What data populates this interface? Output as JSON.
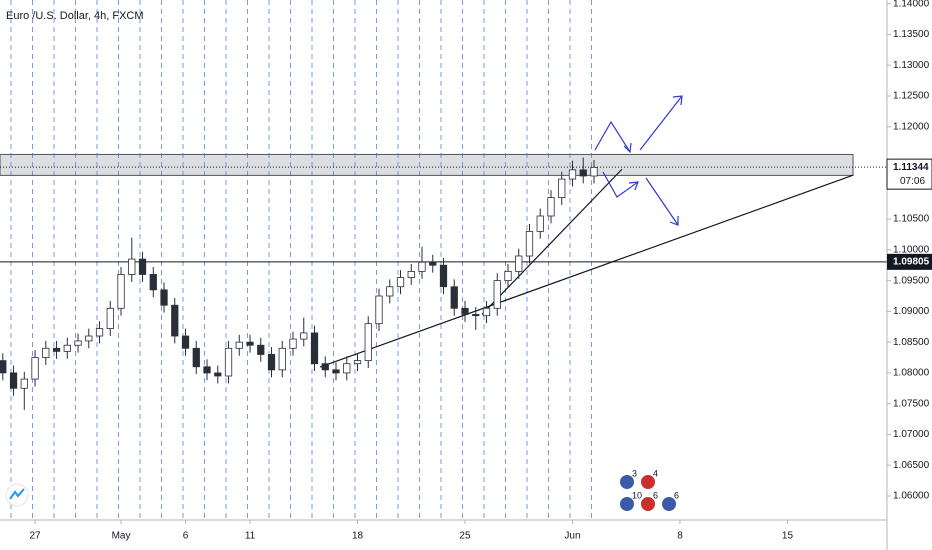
{
  "chart_data": {
    "type": "candlestick",
    "title": "Euro /U.S. Dollar, 4h, FXCM",
    "x": [
      -1.5,
      -1,
      -0.5,
      0,
      0.5,
      1,
      1.5,
      2,
      2.5,
      3,
      3.5,
      4,
      4.5,
      5,
      5.5,
      6,
      6.5,
      7,
      7.5,
      8,
      8.5,
      9,
      9.5,
      10,
      10.5,
      11,
      11.5,
      12,
      12.5,
      13,
      13.5,
      14,
      14.5,
      15,
      15.5,
      16,
      16.5,
      17,
      17.5,
      18,
      18.5,
      19,
      19.5,
      20,
      20.5,
      21,
      21.5,
      22,
      22.5,
      23,
      23.5,
      24,
      24.5,
      25,
      25.5,
      26
    ],
    "open": [
      1.082,
      1.08,
      1.0775,
      1.079,
      1.0825,
      1.084,
      1.0835,
      1.0845,
      1.0852,
      1.086,
      1.0872,
      1.0905,
      1.096,
      1.0985,
      1.096,
      1.0935,
      1.091,
      1.086,
      1.084,
      1.081,
      1.08,
      1.0795,
      1.084,
      1.085,
      1.0845,
      1.083,
      1.0805,
      1.084,
      1.0855,
      1.0865,
      1.0815,
      1.0805,
      1.08,
      1.0815,
      1.082,
      1.088,
      1.0925,
      1.094,
      1.0955,
      1.0965,
      1.098,
      1.0975,
      1.094,
      1.0905,
      1.0895,
      1.0893,
      1.0905,
      1.095,
      1.0965,
      1.099,
      1.103,
      1.1055,
      1.1085,
      1.1115,
      1.113,
      1.112
    ],
    "high": [
      1.0832,
      1.0812,
      1.0802,
      1.0837,
      1.0852,
      1.0852,
      1.0857,
      1.0864,
      1.0872,
      1.0884,
      1.0917,
      1.0972,
      1.102,
      1.0997,
      1.0972,
      1.0947,
      1.0922,
      1.0872,
      1.0852,
      1.0822,
      1.0812,
      1.0852,
      1.0862,
      1.0862,
      1.0857,
      1.0842,
      1.0852,
      1.0867,
      1.089,
      1.0877,
      1.0827,
      1.0817,
      1.0827,
      1.0832,
      1.0892,
      1.0937,
      1.0952,
      1.0967,
      1.0977,
      1.1005,
      1.0992,
      1.0987,
      1.0952,
      1.0917,
      1.0907,
      1.0917,
      1.0962,
      1.0977,
      1.1002,
      1.1042,
      1.1067,
      1.1097,
      1.1127,
      1.1145,
      1.115,
      1.1146
    ],
    "low": [
      1.0788,
      1.0763,
      1.074,
      1.0778,
      1.0813,
      1.0823,
      1.0823,
      1.0833,
      1.084,
      1.0848,
      1.086,
      1.0893,
      1.0948,
      1.0948,
      1.0923,
      1.0898,
      1.0848,
      1.0828,
      1.0798,
      1.0788,
      1.0783,
      1.0783,
      1.0828,
      1.0833,
      1.0818,
      1.0793,
      1.0793,
      1.0828,
      1.0843,
      1.0803,
      1.0793,
      1.0788,
      1.0788,
      1.0803,
      1.0808,
      1.0868,
      1.0913,
      1.0928,
      1.0943,
      1.0953,
      1.0963,
      1.0928,
      1.0893,
      1.0883,
      1.087,
      1.0881,
      1.0893,
      1.0938,
      1.0953,
      1.0978,
      1.1018,
      1.1043,
      1.1073,
      1.1103,
      1.1108,
      1.1108
    ],
    "close": [
      1.08,
      1.0775,
      1.079,
      1.0825,
      1.084,
      1.0835,
      1.0845,
      1.0852,
      1.086,
      1.0872,
      1.0905,
      1.096,
      1.0985,
      1.096,
      1.0935,
      1.091,
      1.086,
      1.084,
      1.081,
      1.08,
      1.0795,
      1.084,
      1.085,
      1.0845,
      1.083,
      1.0805,
      1.084,
      1.0855,
      1.0865,
      1.0815,
      1.0805,
      1.08,
      1.0815,
      1.082,
      1.088,
      1.0925,
      1.094,
      1.0955,
      1.0965,
      1.098,
      1.0975,
      1.094,
      1.0905,
      1.0895,
      1.0893,
      1.0905,
      1.095,
      1.0965,
      1.099,
      1.103,
      1.1055,
      1.1085,
      1.1115,
      1.113,
      1.112,
      1.1134
    ],
    "up_color": "#ffffff",
    "down_color": "#2a2e39",
    "xlim": [
      -1.63,
      39.63
    ],
    "xticks": [
      {
        "value": 0,
        "label": "27"
      },
      {
        "value": 4,
        "label": "May"
      },
      {
        "value": 7,
        "label": "6"
      },
      {
        "value": 10,
        "label": "11"
      },
      {
        "value": 15,
        "label": "18"
      },
      {
        "value": 20,
        "label": "25"
      },
      {
        "value": 25,
        "label": "Jun"
      },
      {
        "value": 30,
        "label": "8"
      },
      {
        "value": 35,
        "label": "15"
      }
    ],
    "ylim": [
      1.0561,
      1.1406
    ],
    "yticks": [
      {
        "value": 1.06,
        "label": "1.06000"
      },
      {
        "value": 1.065,
        "label": "1.06500"
      },
      {
        "value": 1.07,
        "label": "1.07000"
      },
      {
        "value": 1.075,
        "label": "1.07500"
      },
      {
        "value": 1.08,
        "label": "1.08000"
      },
      {
        "value": 1.085,
        "label": "1.08500"
      },
      {
        "value": 1.09,
        "label": "1.09000"
      },
      {
        "value": 1.095,
        "label": "1.09500"
      },
      {
        "value": 1.1,
        "label": "1.10000"
      },
      {
        "value": 1.105,
        "label": "1.10500"
      },
      {
        "value": 1.12,
        "label": "1.12000"
      },
      {
        "value": 1.125,
        "label": "1.12500"
      },
      {
        "value": 1.13,
        "label": "1.13000"
      },
      {
        "value": 1.135,
        "label": "1.13500"
      },
      {
        "value": 1.14,
        "label": "1.14000"
      }
    ],
    "hline": {
      "value": 1.09805,
      "label": "1.09805"
    },
    "last_price": {
      "value": 1.11344,
      "label": "1.11344"
    },
    "countdown": "07:06",
    "zone": {
      "y": [
        1.1121,
        1.1155
      ],
      "x_end": 38.05
    },
    "trendlines": [
      {
        "x": [
          13.26,
          38.05
        ],
        "y": [
          1.08095,
          1.11213
        ]
      },
      {
        "x": [
          20.79,
          27.3
        ],
        "y": [
          1.0895,
          1.1131
        ]
      }
    ],
    "events": [
      3,
      4,
      10,
      6,
      6
    ]
  }
}
